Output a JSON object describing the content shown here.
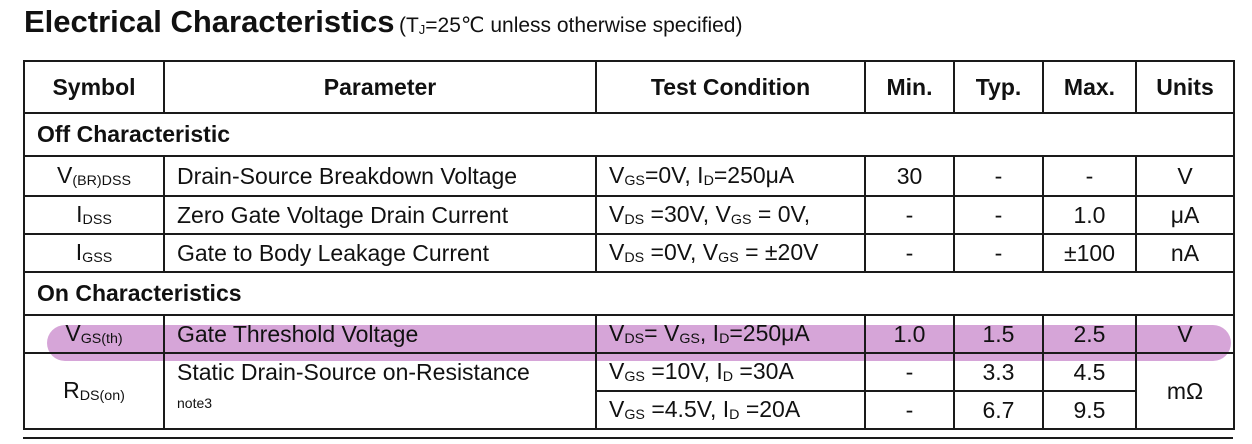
{
  "heading": {
    "title": "Electrical Characteristics",
    "cond_prefix": "(T",
    "cond_sub": "J",
    "cond_suffix": "=25℃ unless otherwise specified)"
  },
  "columns": [
    "Symbol",
    "Parameter",
    "Test Condition",
    "Min.",
    "Typ.",
    "Max.",
    "Units"
  ],
  "sections": {
    "off": "Off Characteristic",
    "on": "On Characteristics"
  },
  "rows": {
    "vbr": {
      "sym_main": "V",
      "sym_sub": "(BR)DSS",
      "param": "Drain-Source Breakdown Voltage",
      "c1": "V",
      "c1s": "GS",
      "c2": "=0V, I",
      "c2s": "D",
      "c3": "=250μA",
      "min": "30",
      "typ": "-",
      "max": "-",
      "unit": "V"
    },
    "idss": {
      "sym_main": "I",
      "sym_sub": "DSS",
      "param": "Zero Gate Voltage Drain Current",
      "c1": "V",
      "c1s": "DS",
      "c2": " =30V, V",
      "c2s": "GS",
      "c3": " = 0V,",
      "min": "-",
      "typ": "-",
      "max": "1.0",
      "unit": "μA"
    },
    "igss": {
      "sym_main": "I",
      "sym_sub": "GSS",
      "param": "Gate to Body Leakage Current",
      "c1": "V",
      "c1s": "DS",
      "c2": " =0V, V",
      "c2s": "GS",
      "c3": " = ±20V",
      "min": "-",
      "typ": "-",
      "max": "±100",
      "unit": "nA"
    },
    "vth": {
      "sym_main": "V",
      "sym_sub": "GS(th)",
      "param": "Gate Threshold Voltage",
      "c1": "V",
      "c1s": "DS",
      "c2": "= V",
      "c2s": "GS",
      "c3": ", I",
      "c3s": "D",
      "c4": "=250μA",
      "min": "1.0",
      "typ": "1.5",
      "max": "2.5",
      "unit": "V"
    },
    "rds": {
      "sym_main": "R",
      "sym_sub": "DS(on)",
      "param": "Static Drain-Source on-Resistance",
      "note": "note3",
      "unit": "mΩ",
      "a": {
        "c1": "V",
        "c1s": "GS",
        "c2": " =10V, I",
        "c2s": "D",
        "c3": " =30A",
        "min": "-",
        "typ": "3.3",
        "max": "4.5"
      },
      "b": {
        "c1": "V",
        "c1s": "GS",
        "c2": " =4.5V, I",
        "c2s": "D",
        "c3": " =20A",
        "min": "-",
        "typ": "6.7",
        "max": "9.5"
      }
    }
  }
}
